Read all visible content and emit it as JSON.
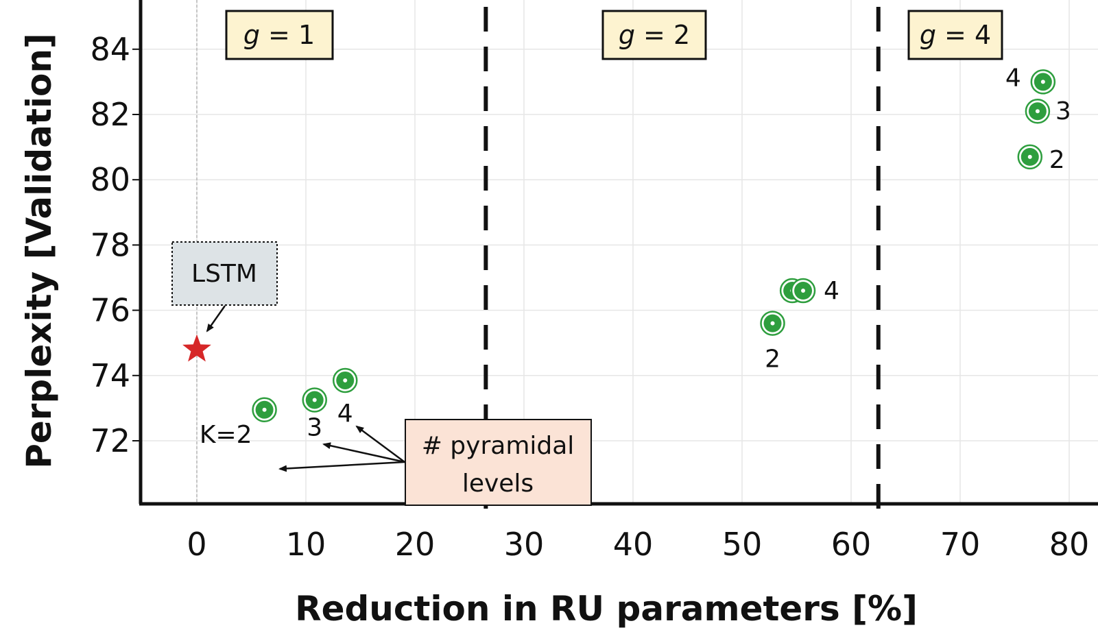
{
  "chart_data": {
    "type": "scatter",
    "title": "",
    "xlabel": "Reduction in RU parameters [%]",
    "ylabel": "Perplexity [Validation]",
    "xlim": [
      -5,
      84
    ],
    "ylim": [
      70,
      85
    ],
    "xticks": [
      0,
      10,
      20,
      30,
      40,
      50,
      60,
      70,
      80
    ],
    "yticks": [
      72,
      74,
      76,
      78,
      80,
      82,
      84
    ],
    "grid": true,
    "baseline": {
      "name": "LSTM",
      "x": 0,
      "y": 74.8,
      "marker": "star",
      "color": "#d62728"
    },
    "series": [
      {
        "name": "g = 1",
        "points": [
          {
            "x": 6.2,
            "y": 72.95,
            "label": "K=2"
          },
          {
            "x": 10.8,
            "y": 73.25,
            "label": "3"
          },
          {
            "x": 13.6,
            "y": 73.85,
            "label": "4"
          }
        ]
      },
      {
        "name": "g = 2",
        "points": [
          {
            "x": 52.8,
            "y": 75.6,
            "label": "2"
          },
          {
            "x": 54.6,
            "y": 76.6,
            "label": ""
          },
          {
            "x": 55.6,
            "y": 76.6,
            "label": "4"
          }
        ]
      },
      {
        "name": "g = 4",
        "points": [
          {
            "x": 76.4,
            "y": 80.7,
            "label": "2"
          },
          {
            "x": 77.1,
            "y": 82.1,
            "label": "3"
          },
          {
            "x": 77.6,
            "y": 83.0,
            "label": "4"
          }
        ]
      }
    ],
    "group_labels": [
      {
        "prefix": "g",
        "text": " = 1"
      },
      {
        "prefix": "g",
        "text": " = 2"
      },
      {
        "prefix": "g",
        "text": " = 4"
      }
    ],
    "dividers": [
      26.5,
      62.5
    ],
    "annotations": {
      "lstm_box": "LSTM",
      "pyramidal_box_line1": "#  pyramidal",
      "pyramidal_box_line2": "levels"
    },
    "colors": {
      "marker_fill": "#2e9e3e",
      "marker_ring": "#2e9e3e",
      "star": "#d62728",
      "g_box_fill": "#fdf3d0",
      "lstm_box_fill": "#dde3e6",
      "pyramidal_box_fill": "#fbe3d6"
    }
  }
}
